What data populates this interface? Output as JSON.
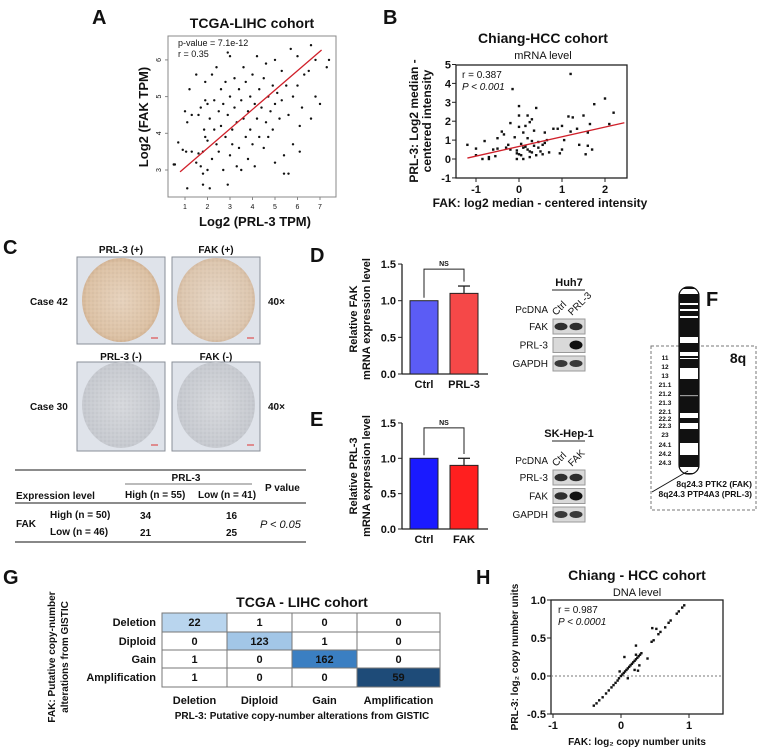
{
  "panel_labels": {
    "a": "A",
    "b": "B",
    "c": "C",
    "d": "D",
    "e": "E",
    "f": "F",
    "g": "G",
    "h": "H"
  },
  "chart_data": [
    {
      "id": "A",
      "type": "scatter",
      "title": "TCGA-LIHC cohort",
      "xlabel": "Log2 (PRL-3 TPM)",
      "ylabel": "Log2 (FAK TPM)",
      "xlim": [
        0.4,
        7.5
      ],
      "ylim": [
        2.2,
        6.6
      ],
      "xticks": [
        1,
        2,
        3,
        4,
        5,
        6,
        7
      ],
      "yticks": [
        3,
        4,
        5,
        6
      ],
      "annotations": [
        "p-value = 7.1e-12",
        "r = 0.35"
      ],
      "fit_line": {
        "color": "#d0202a",
        "from": [
          0.78,
          2.95
        ],
        "to": [
          7.07,
          6.27
        ]
      },
      "points": [
        [
          0.5,
          3.15
        ],
        [
          0.55,
          3.15
        ],
        [
          0.7,
          3.75
        ],
        [
          0.9,
          3.55
        ],
        [
          1.0,
          4.6
        ],
        [
          1.05,
          3.5
        ],
        [
          1.1,
          2.5
        ],
        [
          1.1,
          4.3
        ],
        [
          1.2,
          5.2
        ],
        [
          1.3,
          4.5
        ],
        [
          1.3,
          3.5
        ],
        [
          1.5,
          3.2
        ],
        [
          1.5,
          5.6
        ],
        [
          1.6,
          4.5
        ],
        [
          1.6,
          3.45
        ],
        [
          1.7,
          4.7
        ],
        [
          1.7,
          3.1
        ],
        [
          1.8,
          2.9
        ],
        [
          1.8,
          2.6
        ],
        [
          1.8,
          3.5
        ],
        [
          1.85,
          4.1
        ],
        [
          1.9,
          5.4
        ],
        [
          1.9,
          4.9
        ],
        [
          1.9,
          3.9
        ],
        [
          2.0,
          4.8
        ],
        [
          2.0,
          3.8
        ],
        [
          2.0,
          3.0
        ],
        [
          2.1,
          2.5
        ],
        [
          2.1,
          4.4
        ],
        [
          2.2,
          5.6
        ],
        [
          2.2,
          3.3
        ],
        [
          2.3,
          4.1
        ],
        [
          2.3,
          4.9
        ],
        [
          2.4,
          3.7
        ],
        [
          2.4,
          5.8
        ],
        [
          2.5,
          4.6
        ],
        [
          2.5,
          3.5
        ],
        [
          2.6,
          5.2
        ],
        [
          2.6,
          4.2
        ],
        [
          2.7,
          3.0
        ],
        [
          2.7,
          4.8
        ],
        [
          2.8,
          5.4
        ],
        [
          2.8,
          3.9
        ],
        [
          2.9,
          2.6
        ],
        [
          2.9,
          6.2
        ],
        [
          2.9,
          4.5
        ],
        [
          3.0,
          3.4
        ],
        [
          3.0,
          5.0
        ],
        [
          3.0,
          6.1
        ],
        [
          3.1,
          4.1
        ],
        [
          3.1,
          3.7
        ],
        [
          3.2,
          5.5
        ],
        [
          3.2,
          4.7
        ],
        [
          3.3,
          3.1
        ],
        [
          3.3,
          4.3
        ],
        [
          3.4,
          5.2
        ],
        [
          3.4,
          3.6
        ],
        [
          3.5,
          4.9
        ],
        [
          3.5,
          3.0
        ],
        [
          3.6,
          5.8
        ],
        [
          3.6,
          4.4
        ],
        [
          3.7,
          3.9
        ],
        [
          3.7,
          5.4
        ],
        [
          3.8,
          4.6
        ],
        [
          3.8,
          3.3
        ],
        [
          3.9,
          5.0
        ],
        [
          3.9,
          4.1
        ],
        [
          4.0,
          5.6
        ],
        [
          4.0,
          3.7
        ],
        [
          4.1,
          4.8
        ],
        [
          4.1,
          3.1
        ],
        [
          4.2,
          6.1
        ],
        [
          4.2,
          4.4
        ],
        [
          4.3,
          5.2
        ],
        [
          4.3,
          3.9
        ],
        [
          4.4,
          4.7
        ],
        [
          4.5,
          5.5
        ],
        [
          4.5,
          3.6
        ],
        [
          4.6,
          4.3
        ],
        [
          4.6,
          5.9
        ],
        [
          4.7,
          5.0
        ],
        [
          4.7,
          3.9
        ],
        [
          4.8,
          4.6
        ],
        [
          4.9,
          5.3
        ],
        [
          4.9,
          4.1
        ],
        [
          5.0,
          6.0
        ],
        [
          5.0,
          4.8
        ],
        [
          5.0,
          3.2
        ],
        [
          5.1,
          5.1
        ],
        [
          5.2,
          4.4
        ],
        [
          5.3,
          5.7
        ],
        [
          5.3,
          4.9
        ],
        [
          5.4,
          3.4
        ],
        [
          5.4,
          2.9
        ],
        [
          5.5,
          5.3
        ],
        [
          5.6,
          4.5
        ],
        [
          5.6,
          2.9
        ],
        [
          5.7,
          6.3
        ],
        [
          5.8,
          5.0
        ],
        [
          5.8,
          3.7
        ],
        [
          6.0,
          5.3
        ],
        [
          6.0,
          6.1
        ],
        [
          6.1,
          4.2
        ],
        [
          6.1,
          3.5
        ],
        [
          6.2,
          4.7
        ],
        [
          6.3,
          5.6
        ],
        [
          6.5,
          5.7
        ],
        [
          6.6,
          6.4
        ],
        [
          6.6,
          4.4
        ],
        [
          6.8,
          6.0
        ],
        [
          6.8,
          5.0
        ],
        [
          7.0,
          4.8
        ],
        [
          7.3,
          5.8
        ],
        [
          7.4,
          6.0
        ]
      ]
    },
    {
      "id": "B",
      "type": "scatter",
      "title": "Chiang-HCC cohort",
      "subtitle": "mRNA level",
      "xlabel": "FAK: log2 median - centered intensity",
      "ylabel": [
        "PRL-3: Log2 median -",
        "centered intensity"
      ],
      "xlim": [
        -1.5,
        2.5
      ],
      "ylim": [
        -1,
        5
      ],
      "xticks": [
        -1,
        0,
        1,
        2
      ],
      "yticks": [
        -1,
        0,
        1,
        2,
        3,
        4,
        5
      ],
      "annotations": [
        "r = 0.387",
        "P < 0.001"
      ],
      "fit_line": {
        "color": "#d0202a",
        "from": [
          -1.2,
          0.05
        ],
        "to": [
          2.45,
          1.92
        ]
      },
      "points": [
        [
          -1.2,
          0.75
        ],
        [
          -1.0,
          0.2
        ],
        [
          -1.0,
          0.55
        ],
        [
          -0.85,
          0
        ],
        [
          -0.8,
          0.95
        ],
        [
          -0.7,
          0
        ],
        [
          -0.7,
          0.1
        ],
        [
          -0.6,
          0.5
        ],
        [
          -0.55,
          0.15
        ],
        [
          -0.5,
          0.55
        ],
        [
          -0.5,
          1.1
        ],
        [
          -0.4,
          1.45
        ],
        [
          -0.35,
          1.3
        ],
        [
          -0.3,
          0.6
        ],
        [
          -0.25,
          0.75
        ],
        [
          -0.2,
          0.5
        ],
        [
          -0.2,
          1.9
        ],
        [
          -0.15,
          3.7
        ],
        [
          -0.1,
          1.15
        ],
        [
          -0.05,
          0
        ],
        [
          -0.05,
          0.3
        ],
        [
          -0.05,
          0.45
        ],
        [
          0,
          0.25
        ],
        [
          0,
          1.7
        ],
        [
          0,
          2.3
        ],
        [
          0,
          2.8
        ],
        [
          0.05,
          0.8
        ],
        [
          0.05,
          0.2
        ],
        [
          0.1,
          1.4
        ],
        [
          0.1,
          0
        ],
        [
          0.1,
          0.6
        ],
        [
          0.15,
          1.75
        ],
        [
          0.15,
          0.65
        ],
        [
          0.2,
          1.1
        ],
        [
          0.2,
          0.5
        ],
        [
          0.2,
          2.3
        ],
        [
          0.25,
          1.95
        ],
        [
          0.25,
          0.1
        ],
        [
          0.25,
          0.4
        ],
        [
          0.3,
          0.95
        ],
        [
          0.3,
          0.35
        ],
        [
          0.3,
          2.1
        ],
        [
          0.35,
          0.7
        ],
        [
          0.35,
          1.5
        ],
        [
          0.4,
          0.2
        ],
        [
          0.4,
          2.7
        ],
        [
          0.45,
          0.6
        ],
        [
          0.45,
          0.9
        ],
        [
          0.5,
          0.4
        ],
        [
          0.55,
          0.25
        ],
        [
          0.55,
          0.75
        ],
        [
          0.6,
          0.85
        ],
        [
          0.6,
          1.4
        ],
        [
          0.65,
          1.0
        ],
        [
          0.7,
          0.35
        ],
        [
          0.8,
          1.6
        ],
        [
          0.9,
          1.6
        ],
        [
          0.95,
          0.3
        ],
        [
          1.0,
          1.75
        ],
        [
          1.0,
          0.5
        ],
        [
          1.05,
          1.0
        ],
        [
          1.2,
          1.45
        ],
        [
          1.15,
          2.25
        ],
        [
          1.2,
          4.5
        ],
        [
          1.25,
          2.2
        ],
        [
          1.35,
          1.6
        ],
        [
          1.4,
          0.75
        ],
        [
          1.5,
          2.3
        ],
        [
          1.55,
          0.25
        ],
        [
          1.6,
          1.4
        ],
        [
          1.6,
          0.7
        ],
        [
          1.65,
          1.85
        ],
        [
          1.7,
          0.5
        ],
        [
          1.75,
          2.9
        ],
        [
          2.0,
          3.2
        ],
        [
          2.1,
          1.85
        ],
        [
          2.2,
          2.45
        ]
      ]
    },
    {
      "id": "D",
      "type": "bar",
      "categories": [
        "Ctrl",
        "PRL-3"
      ],
      "values": [
        1.0,
        1.1
      ],
      "errors": [
        0,
        0.1
      ],
      "colors": [
        "#5b5cf5",
        "#f54848"
      ],
      "ylabel": [
        "Relative FAK",
        "mRNA expression level"
      ],
      "ylim": [
        0,
        1.5
      ],
      "yticks": [
        "0.0",
        "0.5",
        "1.0",
        "1.5"
      ],
      "significance": "NS"
    },
    {
      "id": "E",
      "type": "bar",
      "categories": [
        "Ctrl",
        "FAK"
      ],
      "values": [
        1.0,
        0.9
      ],
      "errors": [
        0,
        0.1
      ],
      "colors": [
        "#1a1aff",
        "#ff1f1f"
      ],
      "ylabel": [
        "Relative PRL-3",
        "mRNA expression level"
      ],
      "ylim": [
        0,
        1.5
      ],
      "yticks": [
        "0.0",
        "0.5",
        "1.0",
        "1.5"
      ],
      "significance": "NS"
    },
    {
      "id": "G",
      "type": "heatmap",
      "title": "TCGA - LIHC cohort",
      "xlabel": "PRL-3: Putative copy-number alterations from GISTIC",
      "ylabel": [
        "FAK: Putative copy-number",
        "alterations from GISTIC"
      ],
      "rows": [
        "Deletion",
        "Diploid",
        "Gain",
        "Amplification"
      ],
      "columns": [
        "Deletion",
        "Diploid",
        "Gain",
        "Amplification"
      ],
      "values": [
        [
          22,
          1,
          0,
          0
        ],
        [
          0,
          123,
          1,
          0
        ],
        [
          1,
          0,
          162,
          0
        ],
        [
          1,
          0,
          0,
          59
        ]
      ],
      "highlight_colors": {
        "22": "#b9d5ee",
        "123": "#a2c6e7",
        "162": "#3b7fc2",
        "59": "#1e4b78"
      }
    },
    {
      "id": "H",
      "type": "scatter",
      "title": "Chiang - HCC cohort",
      "subtitle": "DNA level",
      "xlabel": "FAK: log₂ copy number units",
      "ylabel": "PRL-3: log₂ copy number units",
      "xlim": [
        -1,
        1.5
      ],
      "ylim": [
        -0.5,
        1.0
      ],
      "xticks": [
        "-1",
        "0",
        "1"
      ],
      "yticks": [
        "-0.5",
        "0.0",
        "0.5",
        "1.0"
      ],
      "reference_line_y": 0,
      "annotations": [
        "r = 0.987",
        "P < 0.0001"
      ],
      "points": [
        [
          -0.4,
          -0.39
        ],
        [
          -0.36,
          -0.36
        ],
        [
          -0.32,
          -0.32
        ],
        [
          -0.27,
          -0.28
        ],
        [
          -0.22,
          -0.23
        ],
        [
          -0.18,
          -0.19
        ],
        [
          -0.14,
          -0.15
        ],
        [
          -0.11,
          -0.12
        ],
        [
          -0.08,
          -0.09
        ],
        [
          -0.05,
          -0.06
        ],
        [
          -0.03,
          -0.03
        ],
        [
          0,
          0
        ],
        [
          0.02,
          0.02
        ],
        [
          0.04,
          0.04
        ],
        [
          0.06,
          0.06
        ],
        [
          0.08,
          0.08
        ],
        [
          0.1,
          0.1
        ],
        [
          0.12,
          0.12
        ],
        [
          0.14,
          0.14
        ],
        [
          0.16,
          0.16
        ],
        [
          0.18,
          0.18
        ],
        [
          0.2,
          0.2
        ],
        [
          0.22,
          0.22
        ],
        [
          0.24,
          0.24
        ],
        [
          0.26,
          0.26
        ],
        [
          0.28,
          0.28
        ],
        [
          0.3,
          0.3
        ],
        [
          0.45,
          0.45
        ],
        [
          0.48,
          0.47
        ],
        [
          0.55,
          0.55
        ],
        [
          0.58,
          0.58
        ],
        [
          0.65,
          0.64
        ],
        [
          0.7,
          0.7
        ],
        [
          0.73,
          0.73
        ],
        [
          0.82,
          0.82
        ],
        [
          0.85,
          0.85
        ],
        [
          0.9,
          0.9
        ],
        [
          0.93,
          0.93
        ],
        [
          0.05,
          0.25
        ],
        [
          0.1,
          -0.03
        ],
        [
          0.2,
          0.08
        ],
        [
          0.22,
          0.4
        ],
        [
          0.25,
          0.07
        ],
        [
          0.27,
          0.14
        ],
        [
          0.39,
          0.23
        ],
        [
          0.46,
          0.63
        ],
        [
          0.52,
          0.62
        ],
        [
          0.22,
          0.28
        ],
        [
          -0.02,
          0.06
        ]
      ]
    }
  ],
  "panel_c": {
    "tiles": [
      {
        "label": "PRL-3 (+)",
        "stain": "positive"
      },
      {
        "label": "FAK (+)",
        "stain": "positive"
      },
      {
        "label": "PRL-3 (-)",
        "stain": "negative"
      },
      {
        "label": "FAK (-)",
        "stain": "negative"
      }
    ],
    "cases": [
      "Case 42",
      "Case 30"
    ],
    "magnification": [
      "40×",
      "40×"
    ],
    "table": {
      "group_header": "PRL-3",
      "row_header": "Expression level",
      "columns": [
        "High (n = 55)",
        "Low (n = 41)"
      ],
      "pvalue_header": "P value",
      "row_group": "FAK",
      "rows": [
        {
          "label": "High (n = 50)",
          "values": [
            "34",
            "16"
          ]
        },
        {
          "label": "Low (n = 46)",
          "values": [
            "21",
            "25"
          ]
        }
      ],
      "pvalue": "P < 0.05"
    }
  },
  "blots": {
    "d": {
      "cell_line": "Huh7",
      "vector": "PcDNA",
      "lanes": [
        "Ctrl",
        "PRL-3"
      ],
      "rows": [
        "FAK",
        "PRL-3",
        "GAPDH"
      ]
    },
    "e": {
      "cell_line": "SK-Hep-1",
      "vector": "PcDNA",
      "lanes": [
        "Ctrl",
        "FAK"
      ],
      "rows": [
        "PRL-3",
        "FAK",
        "GAPDH"
      ]
    }
  },
  "panel_f": {
    "arm": "8q",
    "bands": [
      "11",
      "12",
      "13",
      "21.1",
      "21.2",
      "21.3",
      "22.1",
      "22.2",
      "22.3",
      "23",
      "24.1",
      "24.2",
      "24.3"
    ],
    "genes": [
      "8q24.3 PTK2 (FAK)",
      "8q24.3 PTP4A3 (PRL-3)"
    ]
  }
}
